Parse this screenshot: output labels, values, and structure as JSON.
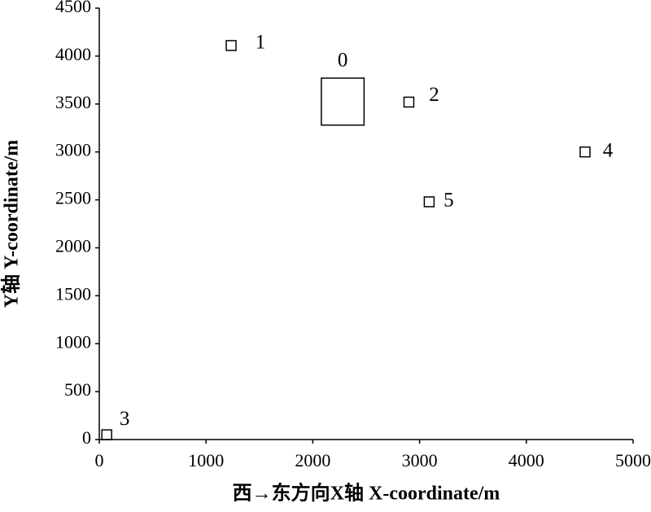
{
  "chart_data": {
    "type": "scatter",
    "marker": "square",
    "color": "#000000",
    "xlabel": "西→东方向X轴 X-coordinate/m",
    "ylabel": "Y轴 Y-coordinate/m",
    "xlim": [
      0,
      5000
    ],
    "xticks": [
      0,
      1000,
      2000,
      3000,
      4000,
      5000
    ],
    "ylim": [
      0,
      4500
    ],
    "yticks": [
      0,
      500,
      1000,
      1500,
      2000,
      2500,
      3000,
      3500,
      4000,
      4500
    ],
    "grid": false,
    "points": [
      {
        "label": "0",
        "x": [
          2080,
          2480
        ],
        "y": [
          3280,
          3770
        ]
      },
      {
        "label": "1",
        "x": 1235,
        "y": 4110
      },
      {
        "label": "2",
        "x": 2900,
        "y": 3520
      },
      {
        "label": "3",
        "x": 70,
        "y": 50
      },
      {
        "label": "4",
        "x": 4550,
        "y": 3000
      },
      {
        "label": "5",
        "x": 3090,
        "y": 2480
      }
    ]
  }
}
